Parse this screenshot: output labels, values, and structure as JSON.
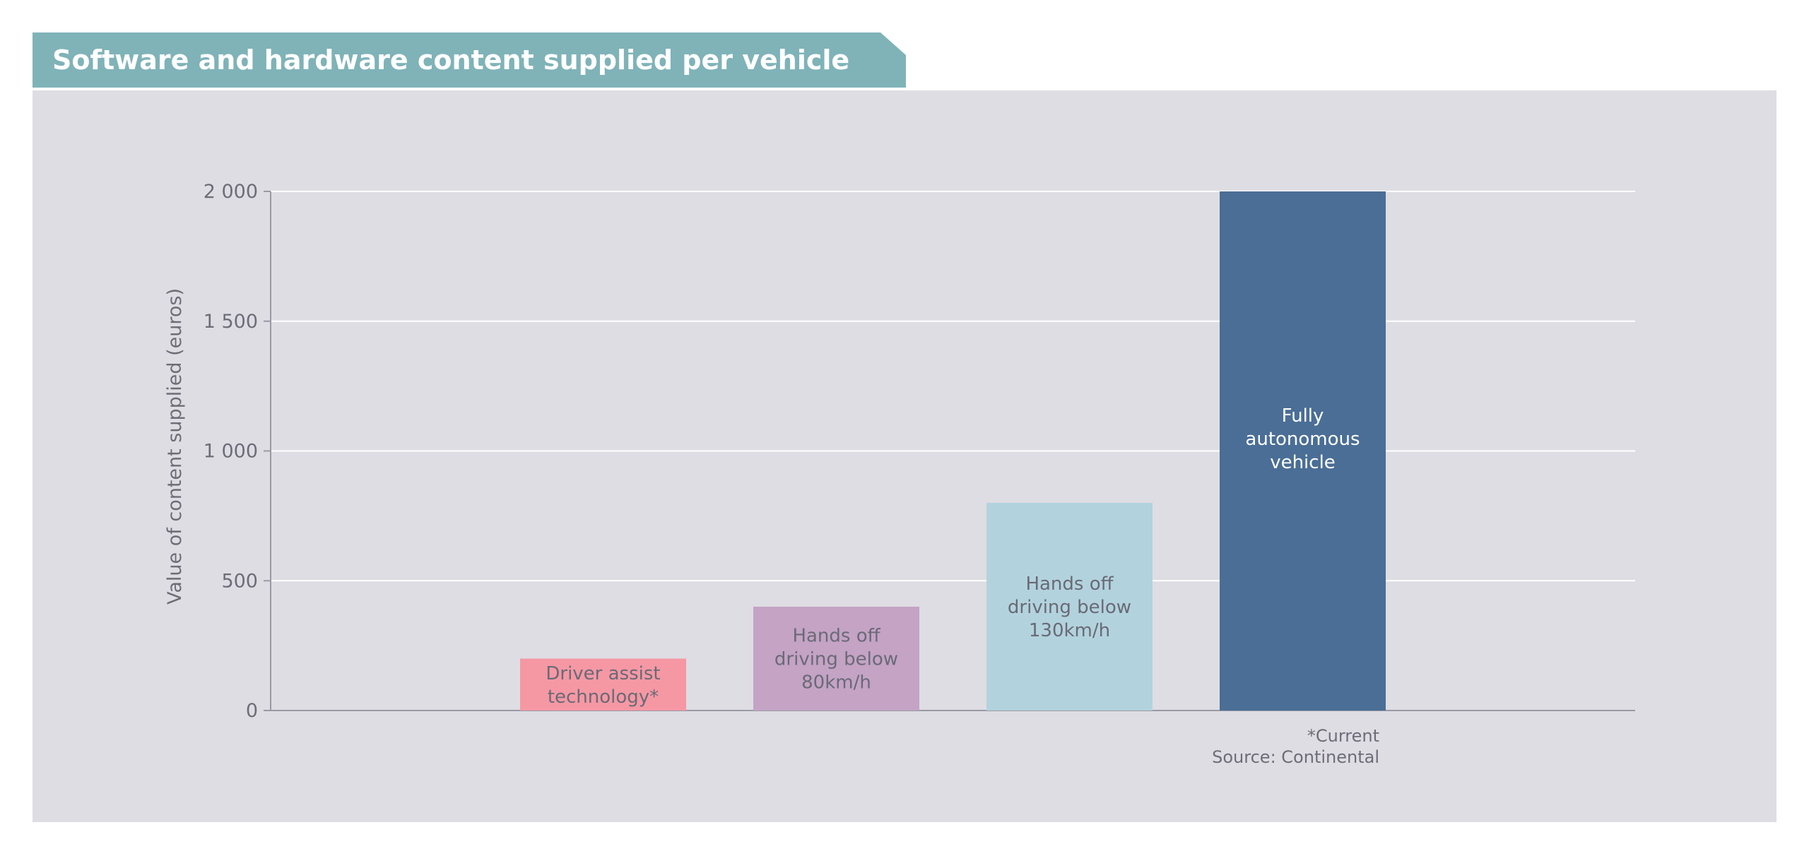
{
  "colors": {
    "title_bg": "#7fb3b8",
    "panel_bg": "#dedde3",
    "gridline": "#ffffff",
    "axis": "#9a9aa6",
    "tick_text": "#6d6d78"
  },
  "chart_data": {
    "type": "bar",
    "title": "Software and hardware content supplied per vehicle",
    "xlabel": "",
    "ylabel": "Value of content supplied (euros)",
    "ylim": [
      0,
      2000
    ],
    "yticks": [
      0,
      500,
      1000,
      1500,
      2000
    ],
    "ytick_labels": [
      "0",
      "500",
      "1 000",
      "1 500",
      "2 000"
    ],
    "grid": true,
    "bars": [
      {
        "label": [
          "Driver assist",
          "technology*"
        ],
        "value": 200,
        "color": "#f598a4",
        "text_color": "#6a6a76"
      },
      {
        "label": [
          "Hands off",
          "driving below",
          "80km/h"
        ],
        "value": 400,
        "color": "#c4a3c5",
        "text_color": "#6a6a76"
      },
      {
        "label": [
          "Hands off",
          "driving below",
          "130km/h"
        ],
        "value": 800,
        "color": "#b2d3dd",
        "text_color": "#6a6a76"
      },
      {
        "label": [
          "Fully",
          "autonomous",
          "vehicle"
        ],
        "value": 2000,
        "color": "#4a6e96",
        "text_color": "#ffffff"
      }
    ],
    "footnote": "*Current",
    "source": "Source: Continental"
  }
}
